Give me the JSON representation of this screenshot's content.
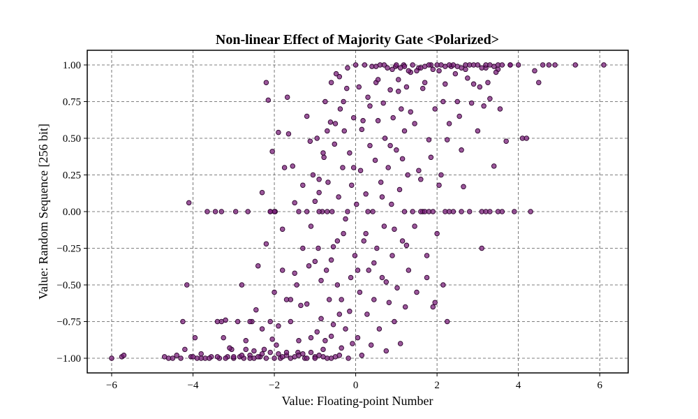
{
  "chart_data": {
    "type": "scatter",
    "title": "Non-linear Effect of Majority Gate <Polarized>",
    "xlabel": "Value: Floating-point Number",
    "ylabel": "Value: Random Sequence [256 bit]",
    "xlim": [
      -6.6,
      6.7
    ],
    "ylim": [
      -1.1,
      1.1
    ],
    "xticks": [
      -6,
      -4,
      -2,
      0,
      2,
      4,
      6
    ],
    "xtick_labels": [
      "−6",
      "−4",
      "−2",
      "0",
      "2",
      "4",
      "6"
    ],
    "yticks": [
      -1.0,
      -0.75,
      -0.5,
      -0.25,
      0.0,
      0.25,
      0.5,
      0.75,
      1.0
    ],
    "ytick_labels": [
      "−1.00",
      "−0.75",
      "−0.50",
      "−0.25",
      "0.00",
      "0.25",
      "0.50",
      "0.75",
      "1.00"
    ],
    "grid": true,
    "marker_color": "#7a1f7a",
    "marker_edge_color": "#2a002a",
    "marker_alpha": 0.75,
    "points": [
      [
        -6.0,
        -1.0
      ],
      [
        -5.75,
        -0.99
      ],
      [
        -5.7,
        -0.98
      ],
      [
        -4.7,
        -0.99
      ],
      [
        -4.6,
        -1.0
      ],
      [
        -4.5,
        -1.0
      ],
      [
        -4.4,
        -0.98
      ],
      [
        -4.3,
        -1.0
      ],
      [
        -4.25,
        -0.75
      ],
      [
        -4.2,
        -0.94
      ],
      [
        -4.15,
        -0.5
      ],
      [
        -4.1,
        0.06
      ],
      [
        -4.05,
        -0.99
      ],
      [
        -3.95,
        -0.86
      ],
      [
        -3.9,
        -1.0
      ],
      [
        -3.8,
        -0.97
      ],
      [
        -3.7,
        -1.0
      ],
      [
        -3.65,
        0.0
      ],
      [
        -3.55,
        -0.99
      ],
      [
        -3.45,
        0.0
      ],
      [
        -3.4,
        -0.75
      ],
      [
        -3.35,
        -1.0
      ],
      [
        -3.25,
        -0.86
      ],
      [
        -3.2,
        -0.74
      ],
      [
        -3.15,
        -0.99
      ],
      [
        -3.05,
        -0.94
      ],
      [
        -3.0,
        -1.0
      ],
      [
        -2.95,
        0.0
      ],
      [
        -2.9,
        -0.75
      ],
      [
        -2.85,
        -0.99
      ],
      [
        -2.8,
        -0.5
      ],
      [
        -2.75,
        -1.0
      ],
      [
        -2.7,
        -0.94
      ],
      [
        -2.65,
        0.0
      ],
      [
        -2.6,
        -0.98
      ],
      [
        -2.55,
        -0.75
      ],
      [
        -2.5,
        -1.0
      ],
      [
        -2.45,
        -0.67
      ],
      [
        -2.4,
        -0.37
      ],
      [
        -2.35,
        -0.99
      ],
      [
        -2.3,
        0.13
      ],
      [
        -2.25,
        -0.94
      ],
      [
        -2.2,
        -0.22
      ],
      [
        -2.2,
        0.88
      ],
      [
        -2.15,
        0.76
      ],
      [
        -2.1,
        0.0
      ],
      [
        -2.1,
        -0.75
      ],
      [
        -2.05,
        0.41
      ],
      [
        -2.0,
        -0.55
      ],
      [
        -1.98,
        0.0
      ],
      [
        -1.95,
        -0.91
      ],
      [
        -1.9,
        0.54
      ],
      [
        -1.85,
        -1.0
      ],
      [
        -1.8,
        -0.12
      ],
      [
        -1.75,
        0.3
      ],
      [
        -1.7,
        -0.98
      ],
      [
        -1.68,
        0.78
      ],
      [
        -1.65,
        0.53
      ],
      [
        -1.6,
        -0.75
      ],
      [
        -1.55,
        0.31
      ],
      [
        -1.5,
        0.06
      ],
      [
        -1.45,
        -0.5
      ],
      [
        -1.42,
        -0.96
      ],
      [
        -1.4,
        0.0
      ],
      [
        -1.35,
        -0.64
      ],
      [
        -1.3,
        0.18
      ],
      [
        -1.25,
        -1.0
      ],
      [
        -1.2,
        0.65
      ],
      [
        -1.15,
        -0.37
      ],
      [
        -1.12,
        0.48
      ],
      [
        -1.1,
        -0.86
      ],
      [
        -1.05,
        0.25
      ],
      [
        -1.0,
        -0.99
      ],
      [
        -0.95,
        0.5
      ],
      [
        -0.92,
        -0.25
      ],
      [
        -0.9,
        0.13
      ],
      [
        -0.85,
        -0.73
      ],
      [
        -0.82,
        0.0
      ],
      [
        -0.8,
        -0.94
      ],
      [
        -0.78,
        0.37
      ],
      [
        -0.75,
        0.75
      ],
      [
        -0.72,
        -0.4
      ],
      [
        -0.7,
        -1.0
      ],
      [
        -0.68,
        0.2
      ],
      [
        -0.65,
        -0.6
      ],
      [
        -0.62,
        0.61
      ],
      [
        -0.6,
        -0.85
      ],
      [
        -0.58,
        0.0
      ],
      [
        -0.55,
        -0.24
      ],
      [
        -0.52,
        0.46
      ],
      [
        -0.5,
        -0.99
      ],
      [
        -0.48,
        0.94
      ],
      [
        -0.45,
        -0.5
      ],
      [
        -0.42,
        0.1
      ],
      [
        -0.4,
        -0.7
      ],
      [
        -0.38,
        0.7
      ],
      [
        -0.35,
        -0.93
      ],
      [
        -0.32,
        0.3
      ],
      [
        -0.3,
        -0.15
      ],
      [
        -0.28,
        0.55
      ],
      [
        -0.25,
        -0.8
      ],
      [
        -0.22,
        0.84
      ],
      [
        -0.2,
        0.0
      ],
      [
        -0.18,
        -1.0
      ],
      [
        -0.15,
        0.4
      ],
      [
        -0.12,
        -0.45
      ],
      [
        -0.1,
        0.18
      ],
      [
        -0.08,
        -0.9
      ],
      [
        -0.05,
        0.64
      ],
      [
        -0.02,
        -0.3
      ],
      [
        0.0,
        1.0
      ],
      [
        0.02,
        0.05
      ],
      [
        0.05,
        -0.86
      ],
      [
        0.08,
        0.85
      ],
      [
        0.1,
        -0.55
      ],
      [
        0.12,
        0.28
      ],
      [
        0.15,
        -0.98
      ],
      [
        0.18,
        0.62
      ],
      [
        0.2,
        -0.2
      ],
      [
        0.22,
        1.0
      ],
      [
        0.25,
        0.12
      ],
      [
        0.28,
        -0.7
      ],
      [
        0.3,
        0.78
      ],
      [
        0.32,
        -0.4
      ],
      [
        0.35,
        0.45
      ],
      [
        0.38,
        -0.91
      ],
      [
        0.4,
        0.99
      ],
      [
        0.42,
        0.0
      ],
      [
        0.45,
        -0.6
      ],
      [
        0.48,
        0.35
      ],
      [
        0.5,
        0.88
      ],
      [
        0.52,
        -0.25
      ],
      [
        0.55,
        0.62
      ],
      [
        0.58,
        -0.8
      ],
      [
        0.6,
        1.0
      ],
      [
        0.62,
        0.2
      ],
      [
        0.65,
        -0.45
      ],
      [
        0.68,
        0.74
      ],
      [
        0.7,
        -0.1
      ],
      [
        0.72,
        0.5
      ],
      [
        0.75,
        -0.95
      ],
      [
        0.78,
        0.98
      ],
      [
        0.8,
        0.3
      ],
      [
        0.82,
        -0.62
      ],
      [
        0.85,
        0.83
      ],
      [
        0.88,
        0.05
      ],
      [
        0.9,
        -0.3
      ],
      [
        0.92,
        0.64
      ],
      [
        0.95,
        -0.75
      ],
      [
        0.98,
        0.99
      ],
      [
        1.0,
        0.42
      ],
      [
        1.02,
        -0.52
      ],
      [
        1.05,
        0.9
      ],
      [
        1.08,
        0.15
      ],
      [
        1.1,
        -0.9
      ],
      [
        1.12,
        0.7
      ],
      [
        1.15,
        -0.2
      ],
      [
        1.18,
        1.0
      ],
      [
        1.2,
        0.55
      ],
      [
        1.22,
        -0.65
      ],
      [
        1.25,
        0.85
      ],
      [
        1.28,
        0.25
      ],
      [
        1.3,
        -0.4
      ],
      [
        1.35,
        0.95
      ],
      [
        1.4,
        0.0
      ],
      [
        1.45,
        0.6
      ],
      [
        1.5,
        -0.55
      ],
      [
        1.55,
        0.98
      ],
      [
        1.6,
        0.22
      ],
      [
        1.65,
        0.0
      ],
      [
        1.7,
        0.88
      ],
      [
        1.75,
        -0.3
      ],
      [
        1.8,
        0.49
      ],
      [
        1.85,
        1.0
      ],
      [
        1.9,
        -0.65
      ],
      [
        1.95,
        0.7
      ],
      [
        2.0,
        -0.15
      ],
      [
        2.05,
        0.96
      ],
      [
        2.1,
        0.25
      ],
      [
        2.15,
        -0.5
      ],
      [
        2.2,
        0.87
      ],
      [
        2.25,
        -0.75
      ],
      [
        2.3,
        0.6
      ],
      [
        2.35,
        0.99
      ],
      [
        2.4,
        -0.0
      ],
      [
        2.5,
        0.75
      ],
      [
        2.6,
        0.42
      ],
      [
        2.7,
        1.0
      ],
      [
        2.8,
        0.0
      ],
      [
        2.9,
        0.87
      ],
      [
        3.0,
        0.55
      ],
      [
        3.1,
        -0.25
      ],
      [
        3.2,
        0.98
      ],
      [
        3.3,
        0.77
      ],
      [
        3.4,
        0.31
      ],
      [
        3.5,
        1.0
      ],
      [
        3.6,
        0.0
      ],
      [
        3.7,
        0.48
      ],
      [
        3.8,
        1.0
      ],
      [
        3.9,
        0.0
      ],
      [
        4.0,
        1.0
      ],
      [
        4.1,
        0.5
      ],
      [
        4.2,
        0.5
      ],
      [
        4.3,
        0.0
      ],
      [
        4.4,
        0.96
      ],
      [
        4.5,
        0.88
      ],
      [
        4.6,
        1.0
      ],
      [
        4.75,
        1.0
      ],
      [
        4.9,
        1.0
      ],
      [
        5.4,
        1.0
      ],
      [
        6.1,
        1.0
      ],
      [
        1.0,
        1.0
      ],
      [
        1.2,
        0.99
      ],
      [
        1.4,
        1.0
      ],
      [
        1.6,
        0.98
      ],
      [
        1.8,
        1.0
      ],
      [
        2.0,
        1.0
      ],
      [
        2.2,
        0.99
      ],
      [
        2.4,
        1.0
      ],
      [
        2.6,
        0.98
      ],
      [
        2.8,
        1.0
      ],
      [
        3.0,
        1.0
      ],
      [
        3.2,
        1.0
      ],
      [
        3.4,
        0.99
      ],
      [
        3.6,
        1.0
      ],
      [
        3.8,
        1.0
      ],
      [
        2.1,
        1.0
      ],
      [
        2.3,
        1.0
      ],
      [
        2.5,
        0.99
      ],
      [
        2.7,
        0.97
      ],
      [
        2.9,
        1.0
      ],
      [
        3.1,
        0.98
      ],
      [
        3.3,
        1.0
      ],
      [
        3.5,
        0.97
      ],
      [
        1.5,
        0.96
      ],
      [
        1.7,
        0.99
      ],
      [
        1.9,
        0.97
      ],
      [
        0.5,
        0.99
      ],
      [
        0.7,
        1.0
      ],
      [
        0.9,
        0.97
      ],
      [
        1.1,
        0.98
      ],
      [
        1.3,
        0.96
      ],
      [
        -2.0,
        -1.0
      ],
      [
        -1.8,
        -0.99
      ],
      [
        -1.6,
        -1.0
      ],
      [
        -1.4,
        -0.98
      ],
      [
        -1.2,
        -1.0
      ],
      [
        -1.0,
        -1.0
      ],
      [
        -0.8,
        -0.99
      ],
      [
        -0.6,
        -1.0
      ],
      [
        -0.4,
        -0.98
      ],
      [
        -2.2,
        -1.0
      ],
      [
        -2.4,
        -0.99
      ],
      [
        -2.6,
        -1.0
      ],
      [
        -2.8,
        -0.98
      ],
      [
        -3.0,
        -0.99
      ],
      [
        -3.2,
        -1.0
      ],
      [
        -3.4,
        -0.99
      ],
      [
        -3.6,
        -1.0
      ],
      [
        -3.8,
        -1.0
      ],
      [
        -4.0,
        -0.99
      ],
      [
        -1.9,
        -0.97
      ],
      [
        -1.7,
        -0.96
      ],
      [
        -1.5,
        -0.99
      ],
      [
        -1.3,
        -0.97
      ],
      [
        -1.1,
        -0.96
      ],
      [
        -0.9,
        -0.98
      ],
      [
        -2.1,
        -0.96
      ],
      [
        -2.3,
        -0.97
      ],
      [
        -2.5,
        -0.95
      ],
      [
        1.6,
        0.0
      ],
      [
        1.7,
        0.0
      ],
      [
        1.8,
        0.0
      ],
      [
        1.9,
        0.0
      ],
      [
        2.2,
        0.0
      ],
      [
        2.3,
        0.0
      ],
      [
        2.6,
        0.0
      ],
      [
        3.1,
        0.0
      ],
      [
        3.2,
        0.0
      ],
      [
        3.3,
        0.0
      ],
      [
        3.5,
        0.0
      ],
      [
        -3.3,
        0.0
      ],
      [
        -2.0,
        0.0
      ],
      [
        -2.1,
        0.0
      ],
      [
        -1.2,
        0.0
      ],
      [
        -0.9,
        0.0
      ],
      [
        -0.7,
        0.0
      ],
      [
        1.2,
        0.0
      ],
      [
        0.3,
        0.0
      ],
      [
        -1.8,
        -0.4
      ],
      [
        -1.6,
        -0.6
      ],
      [
        -1.4,
        -0.88
      ],
      [
        -1.2,
        -0.63
      ],
      [
        -1.0,
        -0.34
      ],
      [
        -0.95,
        -0.82
      ],
      [
        -0.85,
        -0.47
      ],
      [
        -0.75,
        -0.88
      ],
      [
        -0.6,
        -0.33
      ],
      [
        -0.55,
        -0.77
      ],
      [
        -0.45,
        -0.2
      ],
      [
        -0.35,
        -0.6
      ],
      [
        -0.25,
        -0.05
      ],
      [
        -0.15,
        -0.68
      ],
      [
        -0.05,
        0.3
      ],
      [
        0.05,
        -0.4
      ],
      [
        0.15,
        0.56
      ],
      [
        0.25,
        -0.15
      ],
      [
        0.35,
        0.72
      ],
      [
        0.45,
        -0.35
      ],
      [
        0.55,
        0.9
      ],
      [
        0.65,
        0.1
      ],
      [
        0.75,
        -0.48
      ],
      [
        0.85,
        0.45
      ],
      [
        0.95,
        -0.12
      ],
      [
        1.05,
        0.82
      ],
      [
        1.15,
        0.36
      ],
      [
        1.25,
        -0.23
      ],
      [
        1.35,
        0.68
      ],
      [
        1.45,
        -0.1
      ],
      [
        1.55,
        0.28
      ],
      [
        1.65,
        0.84
      ],
      [
        1.75,
        -0.45
      ],
      [
        1.85,
        0.37
      ],
      [
        1.95,
        -0.62
      ],
      [
        2.05,
        0.18
      ],
      [
        2.15,
        0.75
      ],
      [
        2.25,
        0.49
      ],
      [
        2.45,
        0.94
      ],
      [
        2.55,
        0.65
      ],
      [
        2.65,
        0.17
      ],
      [
        2.75,
        0.91
      ],
      [
        2.85,
        0.74
      ],
      [
        3.05,
        0.85
      ],
      [
        3.15,
        0.72
      ],
      [
        3.25,
        0.88
      ],
      [
        3.45,
        0.95
      ],
      [
        3.55,
        0.7
      ],
      [
        -0.3,
        0.75
      ],
      [
        -0.6,
        0.88
      ],
      [
        -0.2,
        0.98
      ],
      [
        -0.4,
        0.92
      ],
      [
        -0.5,
        0.6
      ],
      [
        -0.7,
        0.55
      ],
      [
        -0.8,
        0.4
      ],
      [
        -0.9,
        0.22
      ],
      [
        -1.0,
        0.07
      ],
      [
        -1.1,
        -0.1
      ],
      [
        -1.3,
        -0.25
      ],
      [
        -1.5,
        -0.42
      ],
      [
        -1.7,
        -0.6
      ],
      [
        -1.9,
        -0.78
      ],
      [
        -2.05,
        -0.87
      ],
      [
        -2.3,
        -0.8
      ],
      [
        -2.6,
        -0.75
      ],
      [
        -2.7,
        -0.88
      ],
      [
        -3.1,
        -0.93
      ],
      [
        -3.3,
        -0.75
      ]
    ]
  }
}
